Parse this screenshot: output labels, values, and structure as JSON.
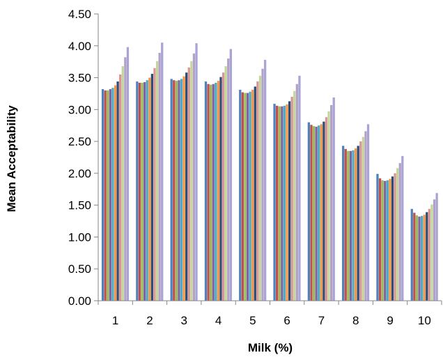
{
  "chart_data": {
    "type": "bar",
    "title": "",
    "xlabel": "Milk (%)",
    "ylabel": "Mean Acceptability",
    "categories": [
      "1",
      "2",
      "3",
      "4",
      "5",
      "6",
      "7",
      "8",
      "9",
      "10"
    ],
    "ylim": [
      0,
      4.5
    ],
    "yticks": [
      "0.00",
      "0.50",
      "1.00",
      "1.50",
      "2.00",
      "2.50",
      "3.00",
      "3.50",
      "4.00",
      "4.50"
    ],
    "grid": false,
    "legend": "none",
    "series": [
      {
        "color": "#4F81BD",
        "values": [
          3.32,
          3.44,
          3.48,
          3.44,
          3.31,
          3.09,
          2.8,
          2.43,
          1.99,
          1.44
        ]
      },
      {
        "color": "#C0504D",
        "values": [
          3.3,
          3.42,
          3.46,
          3.4,
          3.27,
          3.06,
          2.76,
          2.38,
          1.92,
          1.38
        ]
      },
      {
        "color": "#9BBB59",
        "values": [
          3.3,
          3.42,
          3.45,
          3.39,
          3.26,
          3.05,
          2.74,
          2.35,
          1.89,
          1.34
        ]
      },
      {
        "color": "#8064A2",
        "values": [
          3.32,
          3.43,
          3.46,
          3.4,
          3.26,
          3.05,
          2.73,
          2.35,
          1.88,
          1.32
        ]
      },
      {
        "color": "#4BACC6",
        "values": [
          3.34,
          3.46,
          3.48,
          3.42,
          3.28,
          3.06,
          2.75,
          2.36,
          1.89,
          1.33
        ]
      },
      {
        "color": "#F79646",
        "values": [
          3.38,
          3.5,
          3.52,
          3.45,
          3.31,
          3.08,
          2.77,
          2.39,
          1.91,
          1.35
        ]
      },
      {
        "color": "#2C4D75",
        "values": [
          3.44,
          3.56,
          3.58,
          3.51,
          3.36,
          3.13,
          2.81,
          2.43,
          1.95,
          1.39
        ]
      },
      {
        "color": "#D99694",
        "values": [
          3.55,
          3.65,
          3.66,
          3.58,
          3.44,
          3.2,
          2.88,
          2.5,
          2.0,
          1.44
        ]
      },
      {
        "color": "#C3D69B",
        "values": [
          3.68,
          3.76,
          3.76,
          3.68,
          3.53,
          3.29,
          2.97,
          2.57,
          2.08,
          1.51
        ]
      },
      {
        "color": "#B3A2C7",
        "values": [
          3.82,
          3.89,
          3.88,
          3.8,
          3.64,
          3.4,
          3.07,
          2.66,
          2.16,
          1.59
        ]
      },
      {
        "color": "#A9A4D6",
        "values": [
          3.98,
          4.05,
          4.04,
          3.95,
          3.78,
          3.53,
          3.19,
          2.77,
          2.27,
          1.69
        ]
      }
    ]
  }
}
